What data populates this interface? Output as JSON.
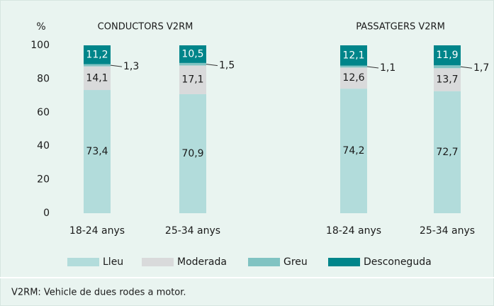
{
  "chart_data": {
    "type": "stacked_bar",
    "ylabel": "%",
    "groups": [
      "CONDUCTORS V2RM",
      "PASSATGERS V2RM"
    ],
    "categories": [
      "18-24 anys",
      "25-34 anys",
      "18-24 anys",
      "25-34 anys"
    ],
    "series": [
      {
        "name": "Lleu",
        "color": "#b2dcdb",
        "values": [
          73.4,
          70.9,
          74.2,
          72.7
        ],
        "value_labels": [
          "73,4",
          "70,9",
          "74,2",
          "72,7"
        ]
      },
      {
        "name": "Moderada",
        "color": "#d9dadb",
        "values": [
          14.1,
          17.1,
          12.6,
          13.7
        ],
        "value_labels": [
          "14,1",
          "17,1",
          "12,6",
          "13,7"
        ]
      },
      {
        "name": "Greu",
        "color": "#80c3c2",
        "values": [
          1.3,
          1.5,
          1.1,
          1.7
        ],
        "value_labels": [
          "1,3",
          "1,5",
          "1,1",
          "1,7"
        ]
      },
      {
        "name": "Desconeguda",
        "color": "#00858a",
        "values": [
          11.2,
          10.5,
          12.1,
          11.9
        ],
        "value_labels": [
          "11,2",
          "10,5",
          "12,1",
          "11,9"
        ]
      }
    ],
    "ylim": [
      0,
      100
    ],
    "yticks": [
      0,
      20,
      40,
      60,
      80,
      100
    ],
    "note": "V2RM: Vehicle de dues rodes a motor."
  }
}
